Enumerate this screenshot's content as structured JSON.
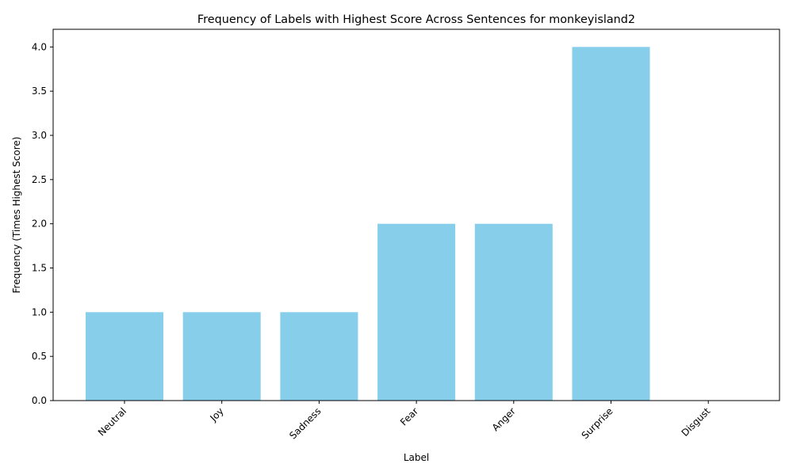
{
  "chart_data": {
    "type": "bar",
    "title": "Frequency of Labels with Highest Score Across Sentences for monkeyisland2",
    "xlabel": "Label",
    "ylabel": "Frequency (Times Highest Score)",
    "categories": [
      "Neutral",
      "Joy",
      "Sadness",
      "Fear",
      "Anger",
      "Surprise",
      "Disgust"
    ],
    "values": [
      1,
      1,
      1,
      2,
      2,
      4,
      0
    ],
    "ylim": [
      0,
      4.2
    ],
    "yticks": [
      "0.0",
      "0.5",
      "1.0",
      "1.5",
      "2.0",
      "2.5",
      "3.0",
      "3.5",
      "4.0"
    ],
    "bar_color": "#87ceeb",
    "grid": false,
    "legend": "none"
  }
}
